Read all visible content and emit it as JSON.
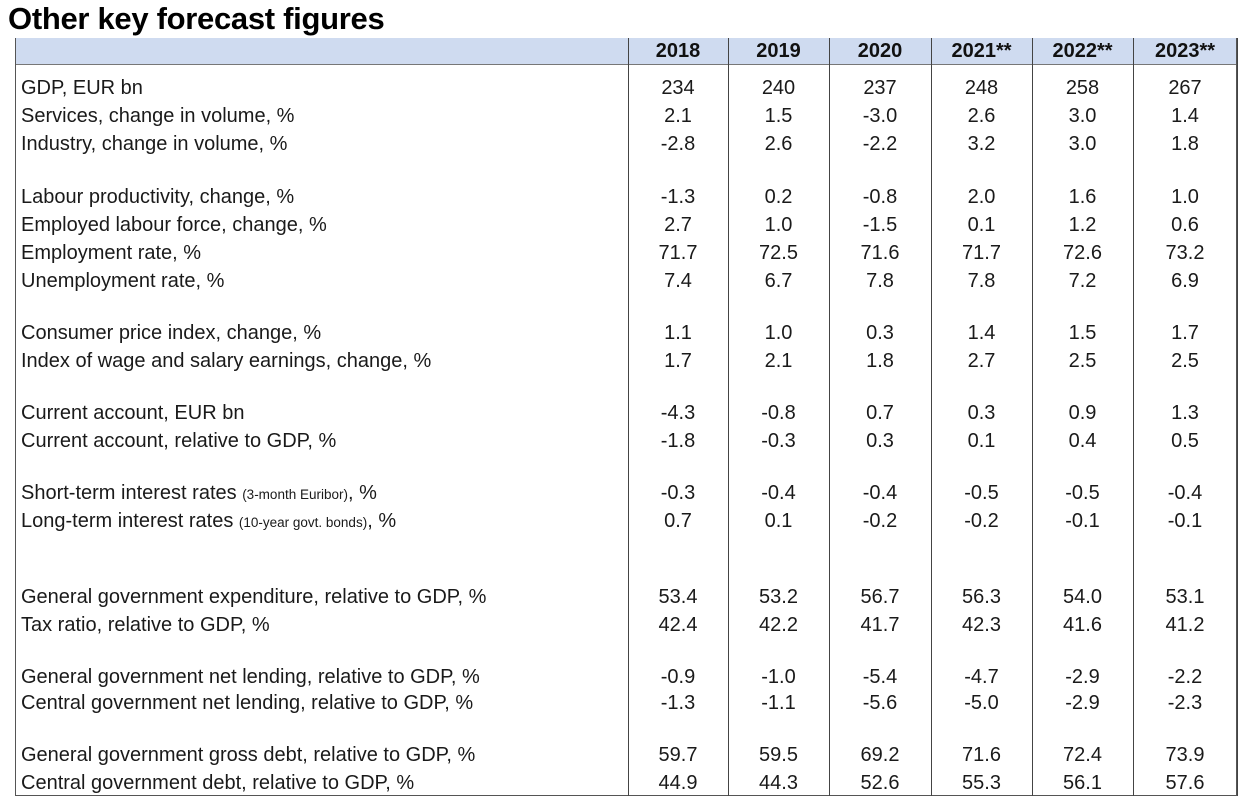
{
  "title": "Other key forecast figures",
  "columns": [
    "2018",
    "2019",
    "2020",
    "2021**",
    "2022**",
    "2023**"
  ],
  "rows": [
    {
      "label": "GDP, EUR bn",
      "values": [
        "234",
        "240",
        "237",
        "248",
        "258",
        "267"
      ]
    },
    {
      "label": "Services, change in volume, %",
      "values": [
        "2.1",
        "1.5",
        "-3.0",
        "2.6",
        "3.0",
        "1.4"
      ]
    },
    {
      "label": "Industry, change in volume, %",
      "values": [
        "-2.8",
        "2.6",
        "-2.2",
        "3.2",
        "3.0",
        "1.8"
      ]
    },
    {
      "label": "Labour productivity, change, %",
      "values": [
        "-1.3",
        "0.2",
        "-0.8",
        "2.0",
        "1.6",
        "1.0"
      ]
    },
    {
      "label": "Employed labour force, change, %",
      "values": [
        "2.7",
        "1.0",
        "-1.5",
        "0.1",
        "1.2",
        "0.6"
      ]
    },
    {
      "label": "Employment rate, %",
      "values": [
        "71.7",
        "72.5",
        "71.6",
        "71.7",
        "72.6",
        "73.2"
      ]
    },
    {
      "label": "Unemployment rate, %",
      "values": [
        "7.4",
        "6.7",
        "7.8",
        "7.8",
        "7.2",
        "6.9"
      ]
    },
    {
      "label": "Consumer price index, change, %",
      "values": [
        "1.1",
        "1.0",
        "0.3",
        "1.4",
        "1.5",
        "1.7"
      ]
    },
    {
      "label": "Index of wage and salary earnings, change, %",
      "values": [
        "1.7",
        "2.1",
        "1.8",
        "2.7",
        "2.5",
        "2.5"
      ]
    },
    {
      "label": "Current account, EUR bn",
      "values": [
        "-4.3",
        "-0.8",
        "0.7",
        "0.3",
        "0.9",
        "1.3"
      ]
    },
    {
      "label": "Current account, relative to GDP, %",
      "values": [
        "-1.8",
        "-0.3",
        "0.3",
        "0.1",
        "0.4",
        "0.5"
      ]
    },
    {
      "label": "Short-term interest rates ",
      "note": "(3-month Euribor)",
      "suffix": ", %",
      "values": [
        "-0.3",
        "-0.4",
        "-0.4",
        "-0.5",
        "-0.5",
        "-0.4"
      ]
    },
    {
      "label": "Long-term interest rates ",
      "note": "(10-year govt. bonds)",
      "suffix": ", %",
      "values": [
        "0.7",
        "0.1",
        "-0.2",
        "-0.2",
        "-0.1",
        "-0.1"
      ]
    },
    {
      "label": "General government expenditure, relative to GDP, %",
      "values": [
        "53.4",
        "53.2",
        "56.7",
        "56.3",
        "54.0",
        "53.1"
      ]
    },
    {
      "label": "Tax ratio, relative to GDP, %",
      "values": [
        "42.4",
        "42.2",
        "41.7",
        "42.3",
        "41.6",
        "41.2"
      ]
    },
    {
      "label": "General government net lending, relative to GDP, %",
      "values": [
        "-0.9",
        "-1.0",
        "-5.4",
        "-4.7",
        "-2.9",
        "-2.2"
      ]
    },
    {
      "label": "Central government net lending, relative to GDP, %",
      "values": [
        "-1.3",
        "-1.1",
        "-5.6",
        "-5.0",
        "-2.9",
        "-2.3"
      ]
    },
    {
      "label": "General government gross debt, relative to GDP, %",
      "values": [
        "59.7",
        "59.5",
        "69.2",
        "71.6",
        "72.4",
        "73.9"
      ]
    },
    {
      "label": "Central government debt, relative to GDP, %",
      "values": [
        "44.9",
        "44.3",
        "52.6",
        "55.3",
        "56.1",
        "57.6"
      ]
    }
  ],
  "colors": {
    "header_bg": "#cfdbf0"
  }
}
